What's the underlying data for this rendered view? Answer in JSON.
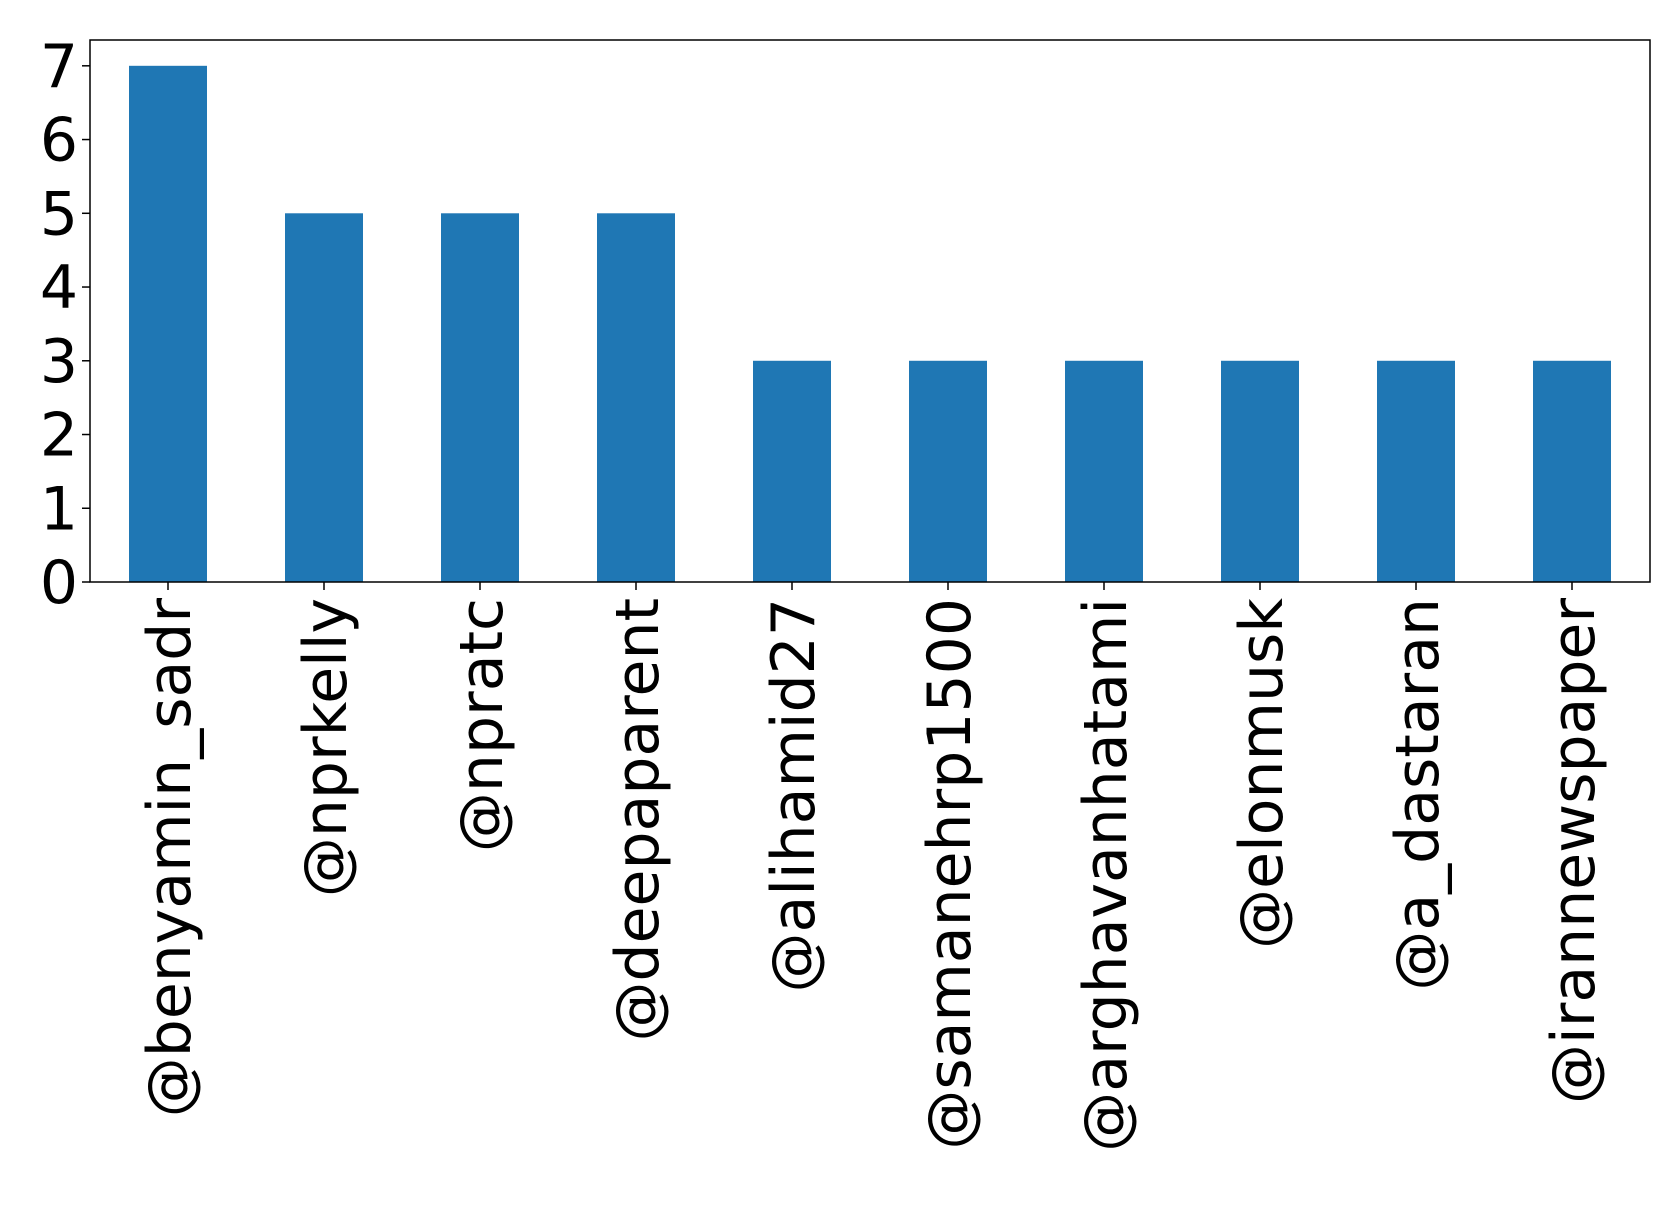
{
  "chart_data": {
    "type": "bar",
    "title": "",
    "xlabel": "",
    "ylabel": "",
    "categories": [
      "@benyamin_sadr",
      "@nprkelly",
      "@npratc",
      "@deepaparent",
      "@alihamid27",
      "@samanehrp1500",
      "@arghavanhatami",
      "@elonmusk",
      "@a_dastaran",
      "@irannewspaper"
    ],
    "values": [
      7,
      5,
      5,
      5,
      3,
      3,
      3,
      3,
      3,
      3
    ],
    "ylim": [
      0,
      7.35
    ],
    "yticks": [
      0,
      1,
      2,
      3,
      4,
      5,
      6,
      7
    ],
    "grid": false,
    "legend": "none",
    "bar_color": "#1f77b4"
  }
}
